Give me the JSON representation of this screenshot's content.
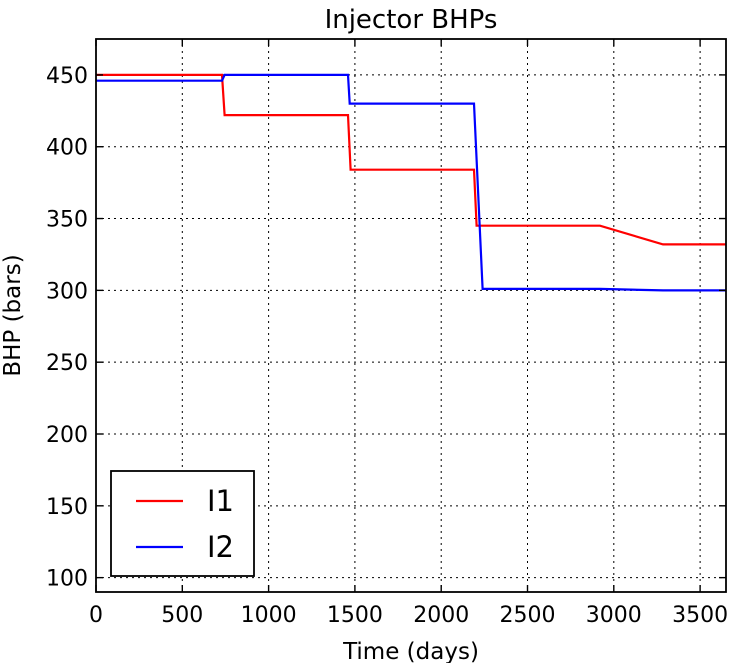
{
  "chart_data": {
    "type": "line",
    "title": "Injector BHPs",
    "xlabel": "Time (days)",
    "ylabel": "BHP (bars)",
    "xlim": [
      0,
      3650
    ],
    "ylim": [
      90,
      475
    ],
    "xticks": [
      0,
      500,
      1000,
      1500,
      2000,
      2500,
      3000,
      3500
    ],
    "yticks": [
      100,
      150,
      200,
      250,
      300,
      350,
      400,
      450
    ],
    "grid": true,
    "legend_position": "lower-left",
    "series": [
      {
        "name": "I1",
        "color": "#ff0000",
        "x": [
          0,
          730,
          745,
          1460,
          1475,
          2190,
          2205,
          2920,
          3285,
          3650
        ],
        "y": [
          450,
          450,
          422,
          422,
          384,
          384,
          345,
          345,
          332,
          332
        ]
      },
      {
        "name": "I2",
        "color": "#0000ff",
        "x": [
          0,
          730,
          745,
          1460,
          1470,
          2190,
          2240,
          2920,
          3285,
          3650
        ],
        "y": [
          446,
          446,
          450,
          450,
          430,
          430,
          301,
          301,
          300,
          300
        ]
      }
    ]
  }
}
